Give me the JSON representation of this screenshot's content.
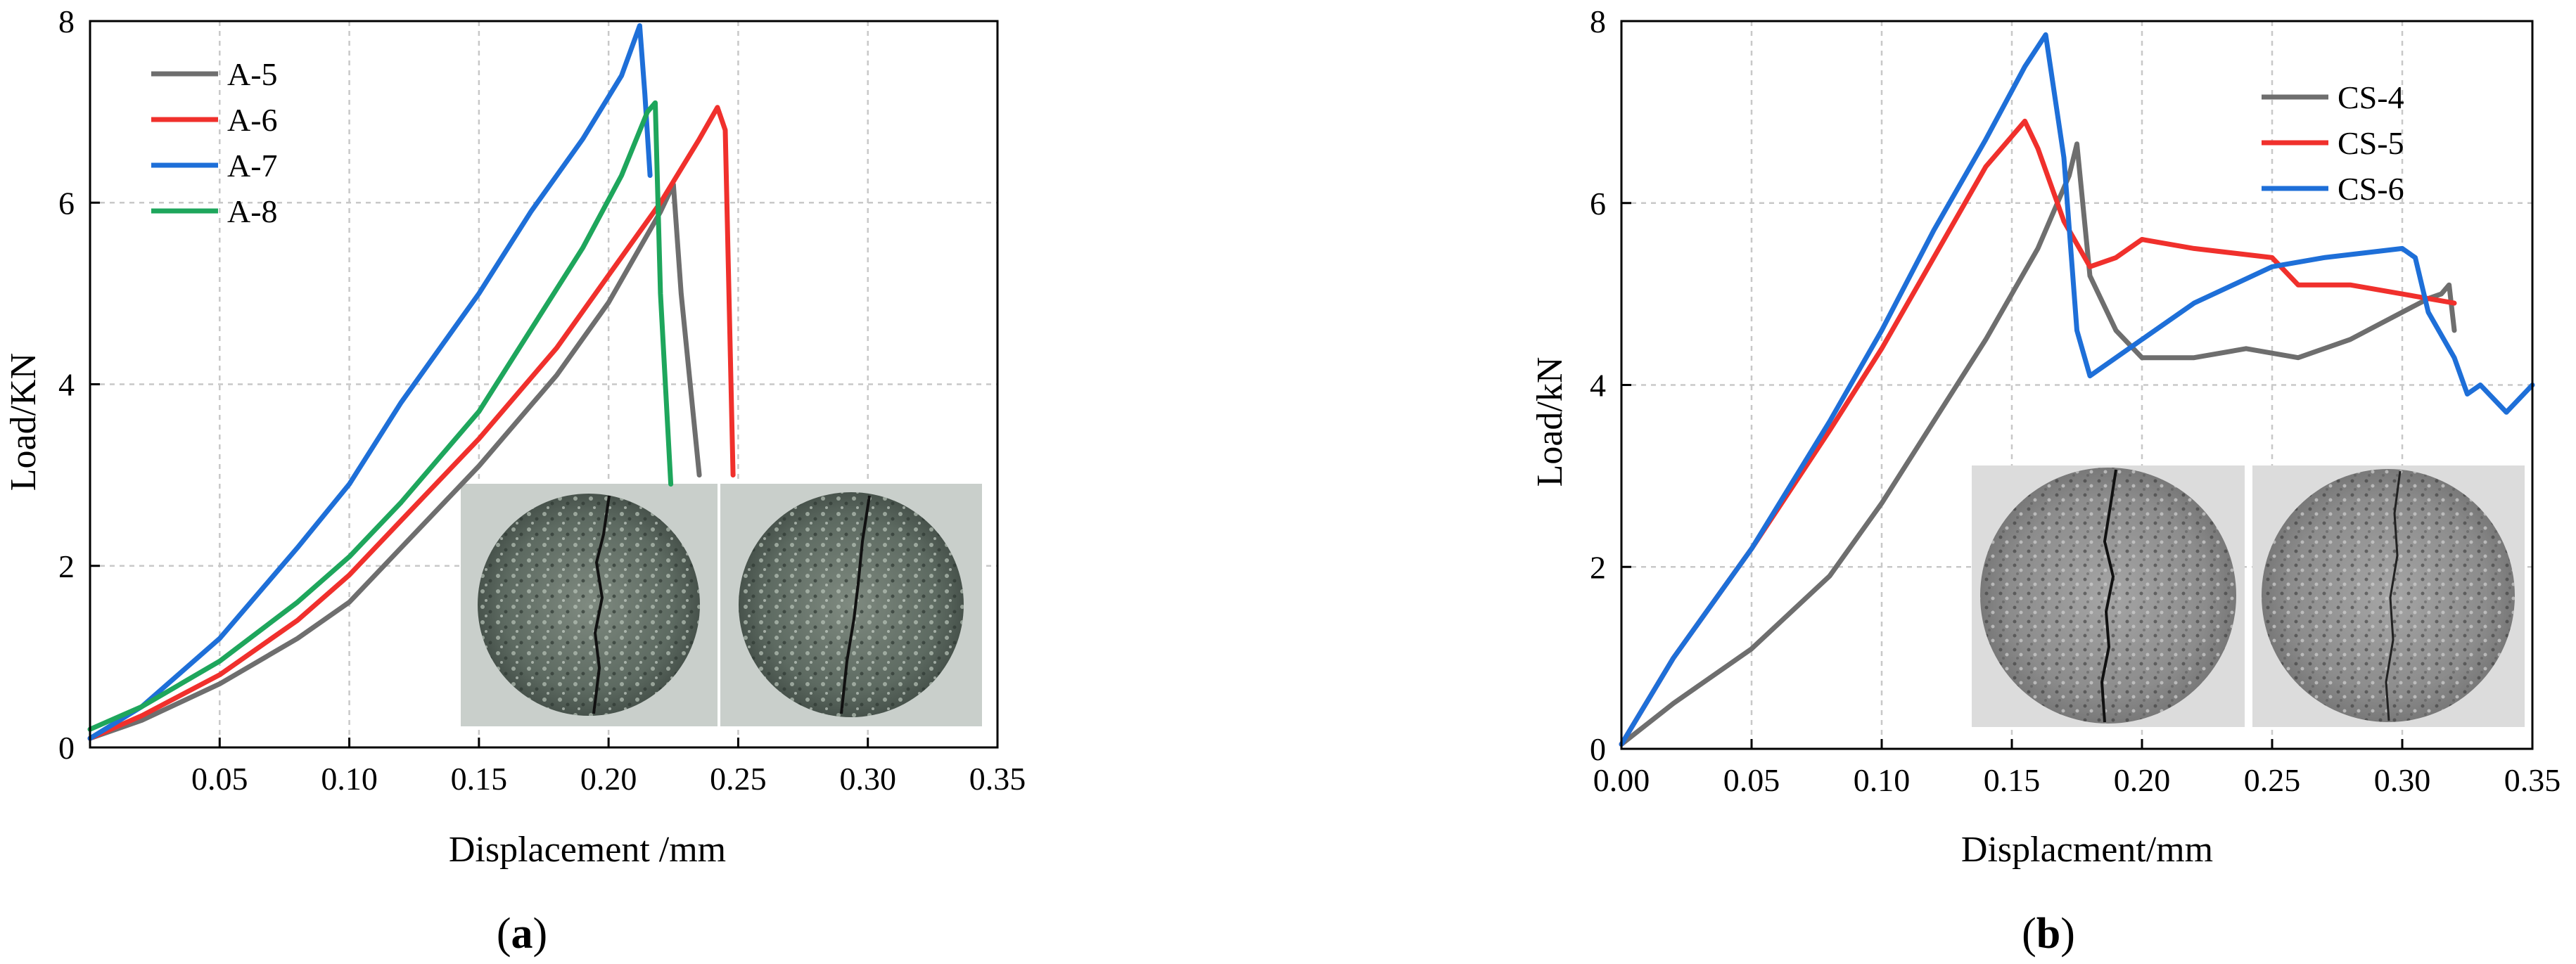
{
  "chart_data": [
    {
      "type": "line",
      "id": "a",
      "caption": "(a)",
      "caption_letter": "a",
      "xlabel": "Displacement /mm",
      "ylabel": "Load/KN",
      "xlim": [
        0,
        0.35
      ],
      "ylim": [
        0,
        8
      ],
      "x_ticks": [
        {
          "value": 0.05,
          "label": "0.05"
        },
        {
          "value": 0.1,
          "label": "0.10"
        },
        {
          "value": 0.15,
          "label": "0.15"
        },
        {
          "value": 0.2,
          "label": "0.20"
        },
        {
          "value": 0.25,
          "label": "0.25"
        },
        {
          "value": 0.3,
          "label": "0.30"
        },
        {
          "value": 0.35,
          "label": "0.35"
        }
      ],
      "y_ticks": [
        {
          "value": 0,
          "label": "0"
        },
        {
          "value": 2,
          "label": "2"
        },
        {
          "value": 4,
          "label": "4"
        },
        {
          "value": 6,
          "label": "6"
        },
        {
          "value": 8,
          "label": "8"
        }
      ],
      "grid": true,
      "legend_position": "top-left",
      "inset_photos": 2,
      "series": [
        {
          "name": "A-5",
          "color": "#6e6e6e",
          "x": [
            0,
            0.02,
            0.05,
            0.08,
            0.1,
            0.12,
            0.15,
            0.18,
            0.2,
            0.21,
            0.22,
            0.225,
            0.228,
            0.235
          ],
          "y": [
            0.1,
            0.3,
            0.7,
            1.2,
            1.6,
            2.2,
            3.1,
            4.1,
            4.9,
            5.4,
            5.9,
            6.2,
            5.0,
            3.0
          ]
        },
        {
          "name": "A-6",
          "color": "#f0302c",
          "x": [
            0,
            0.02,
            0.05,
            0.08,
            0.1,
            0.12,
            0.15,
            0.18,
            0.2,
            0.22,
            0.235,
            0.242,
            0.245,
            0.248
          ],
          "y": [
            0.1,
            0.35,
            0.8,
            1.4,
            1.9,
            2.5,
            3.4,
            4.4,
            5.2,
            6.0,
            6.7,
            7.05,
            6.8,
            3.0
          ]
        },
        {
          "name": "A-7",
          "color": "#1e6fd8",
          "x": [
            0,
            0.02,
            0.05,
            0.08,
            0.1,
            0.12,
            0.15,
            0.17,
            0.19,
            0.205,
            0.212,
            0.214,
            0.216
          ],
          "y": [
            0.1,
            0.45,
            1.2,
            2.2,
            2.9,
            3.8,
            5.0,
            5.9,
            6.7,
            7.4,
            7.95,
            7.2,
            6.3
          ]
        },
        {
          "name": "A-8",
          "color": "#1ea65c",
          "x": [
            0,
            0.02,
            0.05,
            0.08,
            0.1,
            0.12,
            0.15,
            0.17,
            0.19,
            0.205,
            0.215,
            0.218,
            0.22,
            0.224
          ],
          "y": [
            0.2,
            0.45,
            0.95,
            1.6,
            2.1,
            2.7,
            3.7,
            4.6,
            5.5,
            6.3,
            7.0,
            7.1,
            5.0,
            2.9
          ]
        }
      ]
    },
    {
      "type": "line",
      "id": "b",
      "caption": "(b)",
      "caption_letter": "b",
      "xlabel": "Displacment/mm",
      "ylabel": "Load/kN",
      "xlim": [
        0,
        0.35
      ],
      "ylim": [
        0,
        8
      ],
      "x_ticks": [
        {
          "value": 0.0,
          "label": "0.00"
        },
        {
          "value": 0.05,
          "label": "0.05"
        },
        {
          "value": 0.1,
          "label": "0.10"
        },
        {
          "value": 0.15,
          "label": "0.15"
        },
        {
          "value": 0.2,
          "label": "0.20"
        },
        {
          "value": 0.25,
          "label": "0.25"
        },
        {
          "value": 0.3,
          "label": "0.30"
        },
        {
          "value": 0.35,
          "label": "0.35"
        }
      ],
      "y_ticks": [
        {
          "value": 0,
          "label": "0"
        },
        {
          "value": 2,
          "label": "2"
        },
        {
          "value": 4,
          "label": "4"
        },
        {
          "value": 6,
          "label": "6"
        },
        {
          "value": 8,
          "label": "8"
        }
      ],
      "grid": true,
      "legend_position": "top-right",
      "inset_photos": 2,
      "series": [
        {
          "name": "CS-4",
          "color": "#6e6e6e",
          "x": [
            0,
            0.02,
            0.05,
            0.08,
            0.1,
            0.12,
            0.14,
            0.16,
            0.172,
            0.175,
            0.18,
            0.19,
            0.2,
            0.22,
            0.24,
            0.26,
            0.28,
            0.3,
            0.31,
            0.315,
            0.318,
            0.32
          ],
          "y": [
            0.05,
            0.5,
            1.1,
            1.9,
            2.7,
            3.6,
            4.5,
            5.5,
            6.3,
            6.65,
            5.2,
            4.6,
            4.3,
            4.3,
            4.4,
            4.3,
            4.5,
            4.8,
            4.95,
            5.0,
            5.1,
            4.6
          ]
        },
        {
          "name": "CS-5",
          "color": "#f0302c",
          "x": [
            0,
            0.02,
            0.05,
            0.08,
            0.1,
            0.12,
            0.14,
            0.155,
            0.16,
            0.17,
            0.18,
            0.19,
            0.2,
            0.22,
            0.25,
            0.26,
            0.28,
            0.3,
            0.32
          ],
          "y": [
            0.05,
            1.0,
            2.2,
            3.5,
            4.4,
            5.4,
            6.4,
            6.9,
            6.6,
            5.8,
            5.3,
            5.4,
            5.6,
            5.5,
            5.4,
            5.1,
            5.1,
            5.0,
            4.9
          ]
        },
        {
          "name": "CS-6",
          "color": "#1e6fd8",
          "x": [
            0,
            0.02,
            0.05,
            0.08,
            0.1,
            0.12,
            0.14,
            0.155,
            0.163,
            0.17,
            0.175,
            0.18,
            0.2,
            0.22,
            0.25,
            0.27,
            0.3,
            0.305,
            0.31,
            0.32,
            0.325,
            0.33,
            0.34,
            0.35
          ],
          "y": [
            0.05,
            1.0,
            2.2,
            3.6,
            4.6,
            5.7,
            6.7,
            7.5,
            7.85,
            6.5,
            4.6,
            4.1,
            4.5,
            4.9,
            5.3,
            5.4,
            5.5,
            5.4,
            4.8,
            4.3,
            3.9,
            4.0,
            3.7,
            4.0
          ]
        }
      ]
    }
  ]
}
